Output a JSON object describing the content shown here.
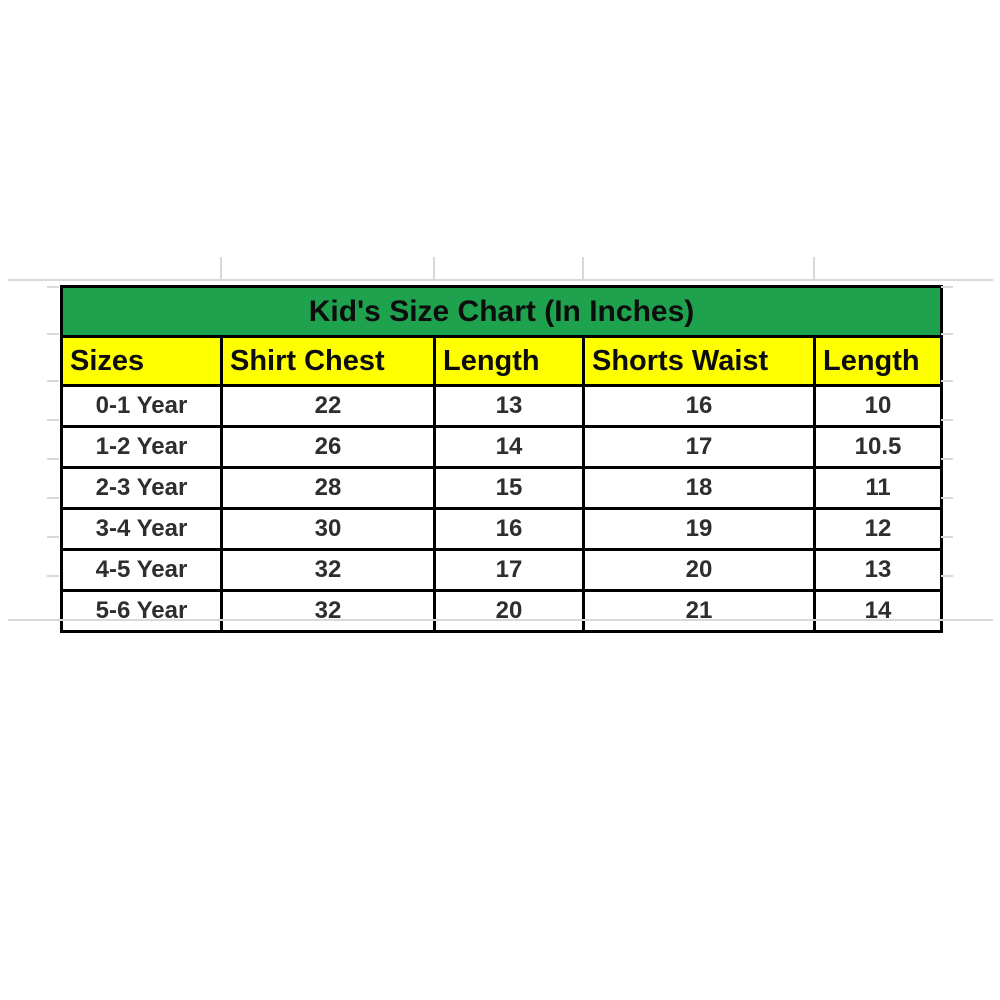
{
  "colors": {
    "title_bg": "#1FA24D",
    "header_bg": "#FFFF00",
    "border": "#000000",
    "title_text": "#0D0D0D",
    "data_text": "#2E2E2E",
    "gridline": "#D9D9D9",
    "page_bg": "#FFFFFF"
  },
  "table": {
    "title": "Kid's Size Chart (In Inches)",
    "headers": [
      "Sizes",
      "Shirt Chest",
      "Length",
      "Shorts Waist",
      "Length"
    ],
    "rows": [
      [
        "0-1 Year",
        "22",
        "13",
        "16",
        "10"
      ],
      [
        "1-2 Year",
        "26",
        "14",
        "17",
        "10.5"
      ],
      [
        "2-3 Year",
        "28",
        "15",
        "18",
        "11"
      ],
      [
        "3-4 Year",
        "30",
        "16",
        "19",
        "12"
      ],
      [
        "4-5 Year",
        "32",
        "17",
        "20",
        "13"
      ],
      [
        "5-6 Year",
        "32",
        "20",
        "21",
        "14"
      ]
    ]
  },
  "chart_data": {
    "type": "table",
    "title": "Kid's Size Chart (In Inches)",
    "columns": [
      "Sizes",
      "Shirt Chest",
      "Length",
      "Shorts Waist",
      "Length"
    ],
    "rows": [
      [
        "0-1 Year",
        22,
        13,
        16,
        10
      ],
      [
        "1-2 Year",
        26,
        14,
        17,
        10.5
      ],
      [
        "2-3 Year",
        28,
        15,
        18,
        11
      ],
      [
        "3-4 Year",
        30,
        16,
        19,
        12
      ],
      [
        "4-5 Year",
        32,
        17,
        20,
        13
      ],
      [
        "5-6 Year",
        32,
        20,
        21,
        14
      ]
    ],
    "units": "inches",
    "notes_visible_layout": "green title band, yellow header row, black grid borders, white data rows"
  }
}
